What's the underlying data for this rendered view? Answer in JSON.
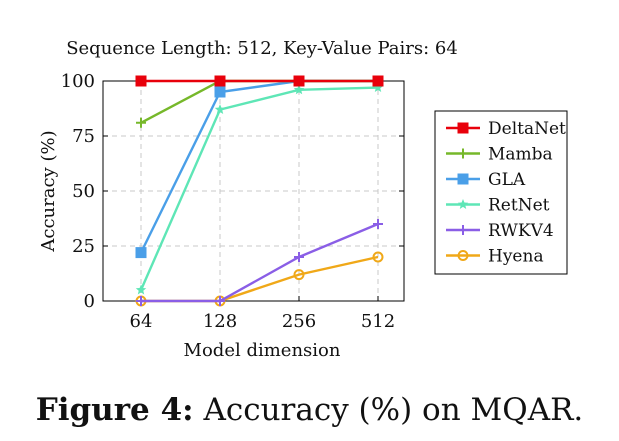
{
  "caption": {
    "label": "Figure 4:",
    "text": "Accuracy (%) on MQAR."
  },
  "chart_data": {
    "type": "line",
    "title": "Sequence Length: 512, Key-Value Pairs: 64",
    "xlabel": "Model dimension",
    "ylabel": "Accuracy (%)",
    "categories": [
      "64",
      "128",
      "256",
      "512"
    ],
    "ylim": [
      0,
      100
    ],
    "yticks": [
      0,
      25,
      50,
      75,
      100
    ],
    "grid": true,
    "legend_position": "right",
    "series": [
      {
        "name": "DeltaNet",
        "values": [
          100,
          100,
          100,
          100
        ],
        "color": "#e8000b",
        "marker": "square"
      },
      {
        "name": "Mamba",
        "values": [
          81,
          100,
          100,
          100
        ],
        "color": "#76b82a",
        "marker": "plus"
      },
      {
        "name": "GLA",
        "values": [
          22,
          95,
          100,
          100
        ],
        "color": "#4a9fe8",
        "marker": "square"
      },
      {
        "name": "RetNet",
        "values": [
          5,
          87,
          96,
          97
        ],
        "color": "#5ee6b6",
        "marker": "star"
      },
      {
        "name": "RWKV4",
        "values": [
          0,
          0,
          20,
          35
        ],
        "color": "#8a5ee6",
        "marker": "plus"
      },
      {
        "name": "Hyena",
        "values": [
          0,
          0,
          12,
          20
        ],
        "color": "#f0a818",
        "marker": "circle"
      }
    ]
  }
}
